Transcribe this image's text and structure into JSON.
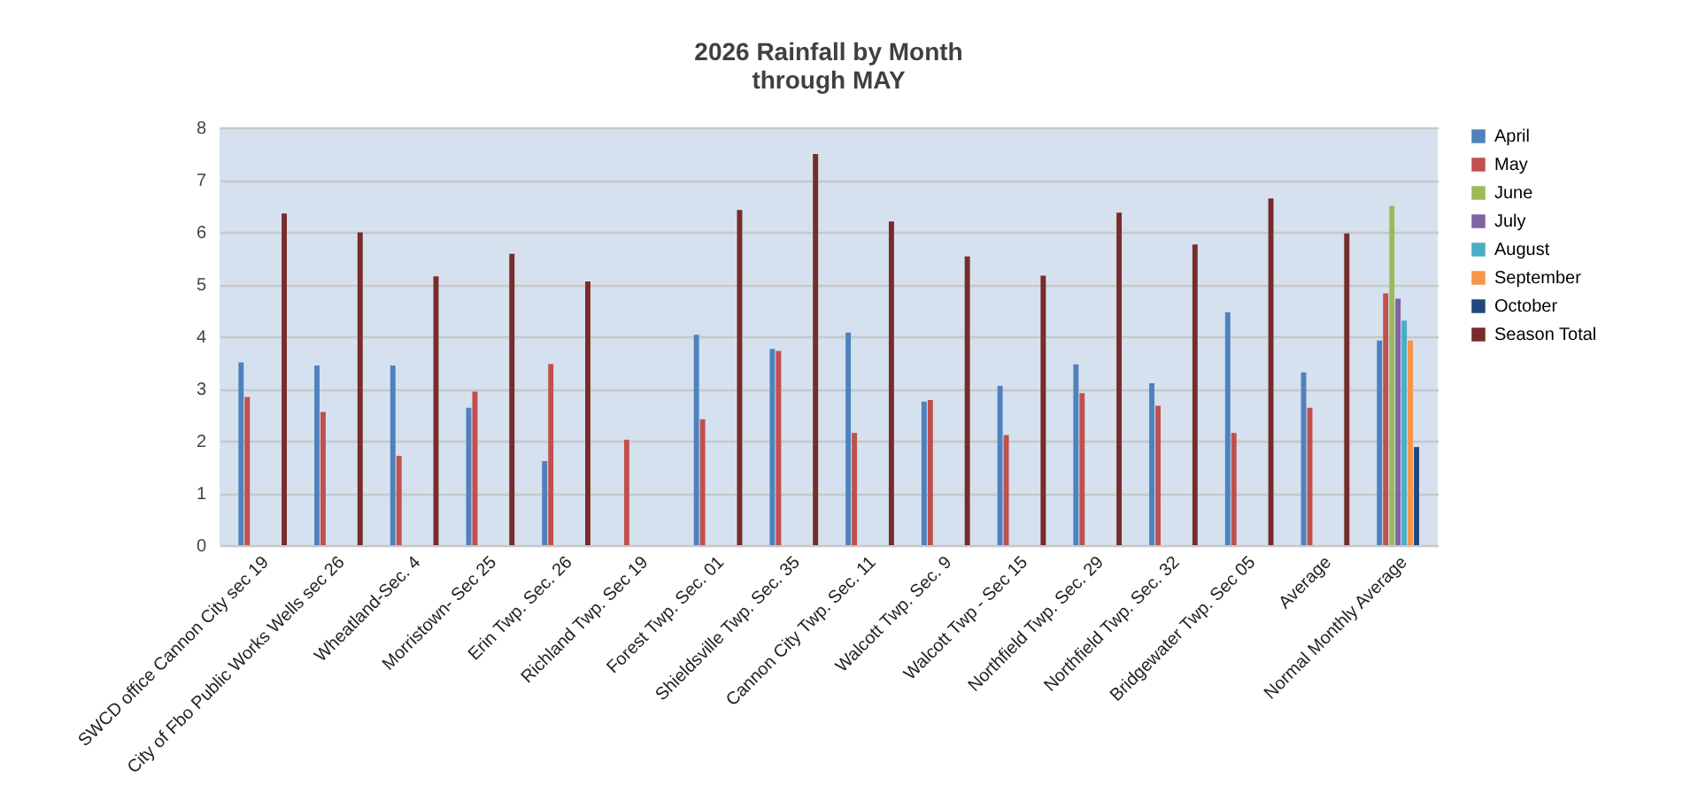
{
  "chart_data": {
    "type": "bar",
    "title": "2026 Rainfall by Month",
    "subtitle": "through MAY",
    "categories": [
      "SWCD office Cannon City sec 19",
      "City of Fbo Public Works Wells sec 26",
      "Wheatland-Sec. 4",
      "Morristown- Sec 25",
      "Erin Twp. Sec. 26",
      "Richland Twp. Sec 19",
      "Forest Twp. Sec. 01",
      "Shieldsville Twp. Sec. 35",
      "Cannon City Twp. Sec. 11",
      "Walcott Twp. Sec. 9",
      "Walcott Twp - Sec 15",
      "Northfield Twp. Sec. 29",
      "Northfield Twp. Sec. 32",
      "Bridgewater Twp. Sec 05",
      "Average",
      "Normal Monthly Average"
    ],
    "series": [
      {
        "name": "April",
        "color": "#4f81bd",
        "values": [
          3.5,
          3.44,
          3.44,
          2.63,
          1.61,
          null,
          4.03,
          3.76,
          4.07,
          2.75,
          3.05,
          3.46,
          3.1,
          4.46,
          3.31,
          3.92
        ]
      },
      {
        "name": "May",
        "color": "#c0504d",
        "values": [
          2.84,
          2.55,
          1.71,
          2.94,
          3.47,
          2.02,
          2.41,
          3.72,
          2.15,
          2.78,
          2.11,
          2.91,
          2.67,
          2.15,
          2.63,
          4.82
        ]
      },
      {
        "name": "June",
        "color": "#9bbb59",
        "values": [
          null,
          null,
          null,
          null,
          null,
          null,
          null,
          null,
          null,
          null,
          null,
          null,
          null,
          null,
          null,
          6.5
        ]
      },
      {
        "name": "July",
        "color": "#8064a2",
        "values": [
          null,
          null,
          null,
          null,
          null,
          null,
          null,
          null,
          null,
          null,
          null,
          null,
          null,
          null,
          null,
          4.72
        ]
      },
      {
        "name": "August",
        "color": "#4bacc6",
        "values": [
          null,
          null,
          null,
          null,
          null,
          null,
          null,
          null,
          null,
          null,
          null,
          null,
          null,
          null,
          null,
          4.3
        ]
      },
      {
        "name": "September",
        "color": "#f79646",
        "values": [
          null,
          null,
          null,
          null,
          null,
          null,
          null,
          null,
          null,
          null,
          null,
          null,
          null,
          null,
          null,
          3.92
        ]
      },
      {
        "name": "October",
        "color": "#1f497d",
        "values": [
          null,
          null,
          null,
          null,
          null,
          null,
          null,
          null,
          null,
          null,
          null,
          null,
          null,
          null,
          null,
          1.88
        ]
      },
      {
        "name": "Season Total",
        "color": "#772c2a",
        "values": [
          6.35,
          5.99,
          5.15,
          5.58,
          5.05,
          null,
          6.42,
          7.49,
          6.2,
          5.53,
          5.16,
          6.37,
          5.76,
          6.64,
          5.97,
          null
        ]
      }
    ],
    "ylim": [
      0,
      8
    ],
    "yticks": [
      0,
      1,
      2,
      3,
      4,
      5,
      6,
      7,
      8
    ],
    "grid": "y",
    "legend": "right"
  }
}
